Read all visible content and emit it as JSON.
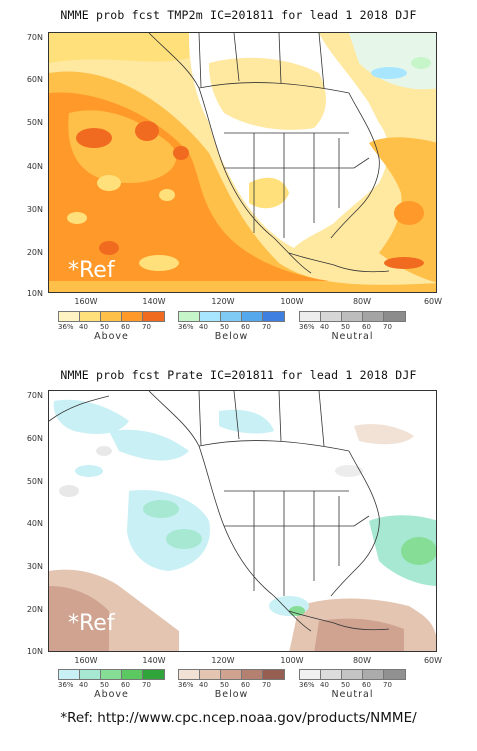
{
  "top": {
    "title": "NMME prob fcst TMP2m IC=201811 for lead 1 2018 DJF",
    "ref_label": "*Ref",
    "lat_labels": [
      "70N",
      "60N",
      "50N",
      "40N",
      "30N",
      "20N",
      "10N"
    ],
    "lon_labels": [
      "160W",
      "140W",
      "120W",
      "100W",
      "80W",
      "60W"
    ],
    "legend": [
      {
        "name": "Above",
        "ticks": [
          "36%",
          "40",
          "50",
          "60",
          "70"
        ],
        "colors": [
          "#fff3c4",
          "#ffe07a",
          "#ffc04a",
          "#ff9a2a",
          "#f06a20"
        ]
      },
      {
        "name": "Below",
        "ticks": [
          "36%",
          "40",
          "50",
          "60",
          "70"
        ],
        "colors": [
          "#c6f5c9",
          "#a8e6ff",
          "#7fcaf5",
          "#56a8ec",
          "#3f7fe0"
        ]
      },
      {
        "name": "Neutral",
        "ticks": [
          "36%",
          "40",
          "50",
          "60",
          "70"
        ],
        "colors": [
          "#eeeeee",
          "#d6d6d6",
          "#bdbdbd",
          "#a4a4a4",
          "#8c8c8c"
        ]
      }
    ]
  },
  "bottom": {
    "title": "NMME prob fcst Prate IC=201811 for lead 1 2018 DJF",
    "ref_label": "*Ref",
    "lat_labels": [
      "70N",
      "60N",
      "50N",
      "40N",
      "30N",
      "20N",
      "10N"
    ],
    "lon_labels": [
      "160W",
      "140W",
      "120W",
      "100W",
      "80W",
      "60W"
    ],
    "legend": [
      {
        "name": "Above",
        "ticks": [
          "36%",
          "40",
          "50",
          "60",
          "70"
        ],
        "colors": [
          "#c8f0f5",
          "#a6e8d2",
          "#86dd96",
          "#5cc862",
          "#2ea43a"
        ]
      },
      {
        "name": "Below",
        "ticks": [
          "36%",
          "40",
          "50",
          "60",
          "70"
        ],
        "colors": [
          "#f2e2d6",
          "#e3c5b2",
          "#cfa390",
          "#b48170",
          "#965f52"
        ]
      },
      {
        "name": "Neutral",
        "ticks": [
          "36%",
          "40",
          "50",
          "60",
          "70"
        ],
        "colors": [
          "#f1f1f1",
          "#dcdcdc",
          "#c4c4c4",
          "#ababab",
          "#919191"
        ]
      }
    ]
  },
  "footer": "*Ref: http://www.cpc.ncep.noaa.gov/products/NMME/"
}
